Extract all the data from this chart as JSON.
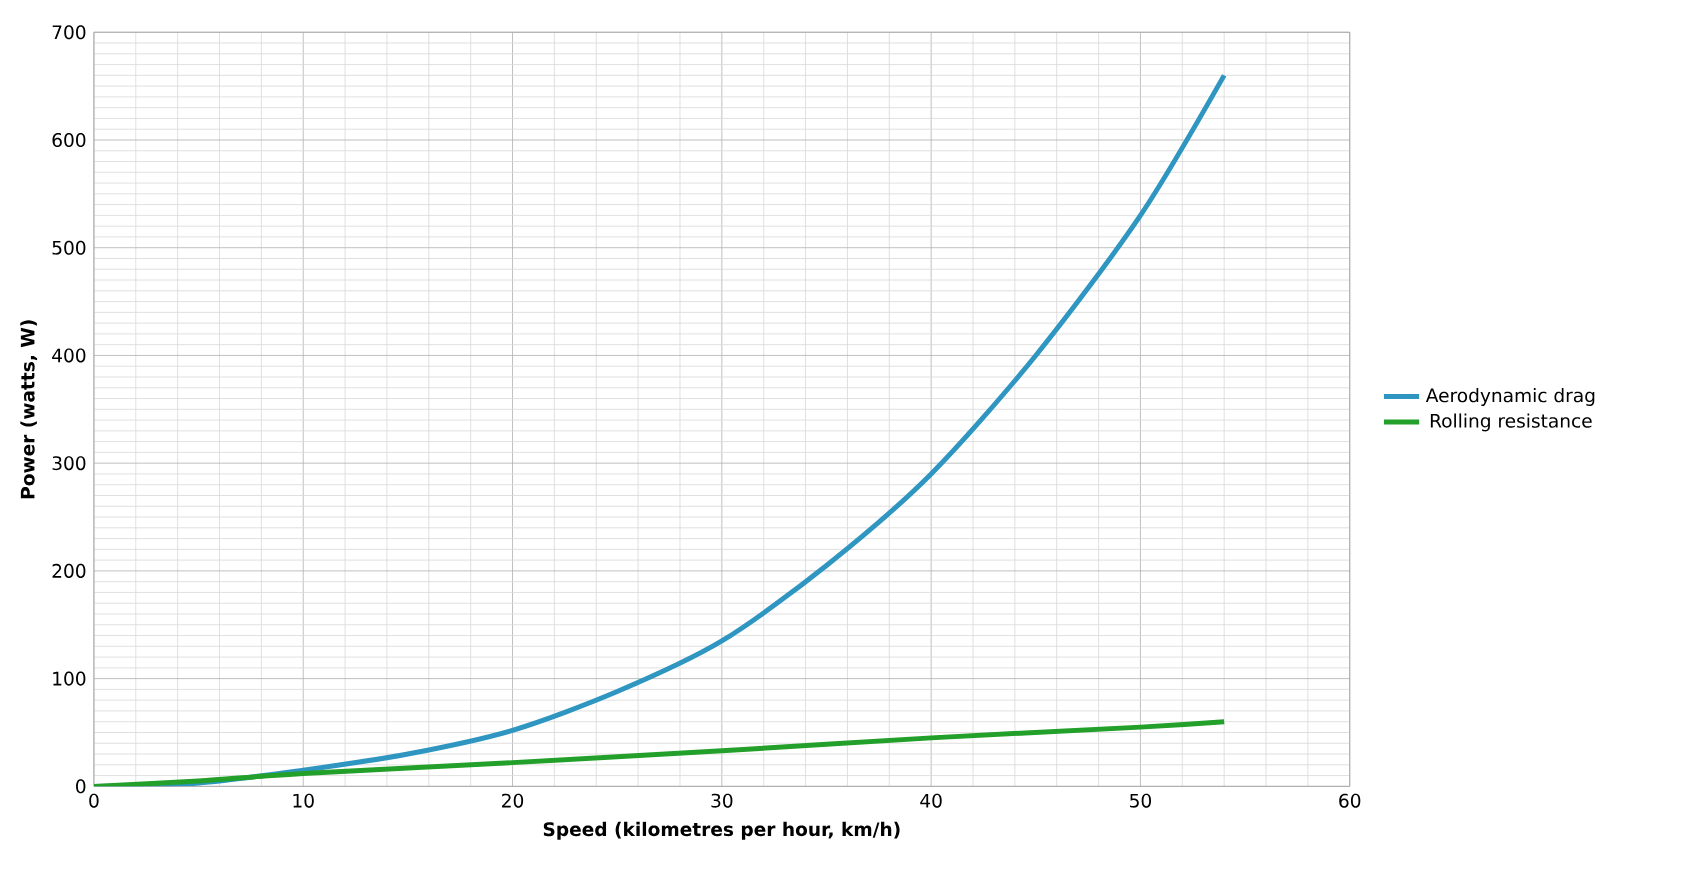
{
  "chart_data": {
    "type": "line",
    "xlabel": "Speed (kilometres per hour, km/h)",
    "ylabel": "Power (watts, W)",
    "xlim": [
      0,
      60
    ],
    "xticks": [
      0,
      10,
      20,
      30,
      40,
      50,
      60
    ],
    "ylim": [
      0,
      700
    ],
    "yticks": [
      0,
      100,
      200,
      300,
      400,
      500,
      600,
      700
    ],
    "grid": true,
    "legend": "right",
    "marker": "none",
    "line_style": "solid",
    "series": [
      {
        "name": "Aerodynamic drag",
        "color": "#2e96c0",
        "x": [
          0,
          5,
          10,
          15,
          20,
          25,
          30,
          35,
          40,
          45,
          50,
          54
        ],
        "values": [
          0,
          3,
          15,
          30,
          52,
          88,
          135,
          205,
          290,
          400,
          530,
          660
        ]
      },
      {
        "name": "Rolling resistance",
        "color": "#22a02a",
        "x": [
          0,
          5,
          10,
          20,
          30,
          40,
          50,
          54
        ],
        "values": [
          0,
          5,
          12,
          22,
          33,
          45,
          55,
          60
        ]
      }
    ]
  }
}
